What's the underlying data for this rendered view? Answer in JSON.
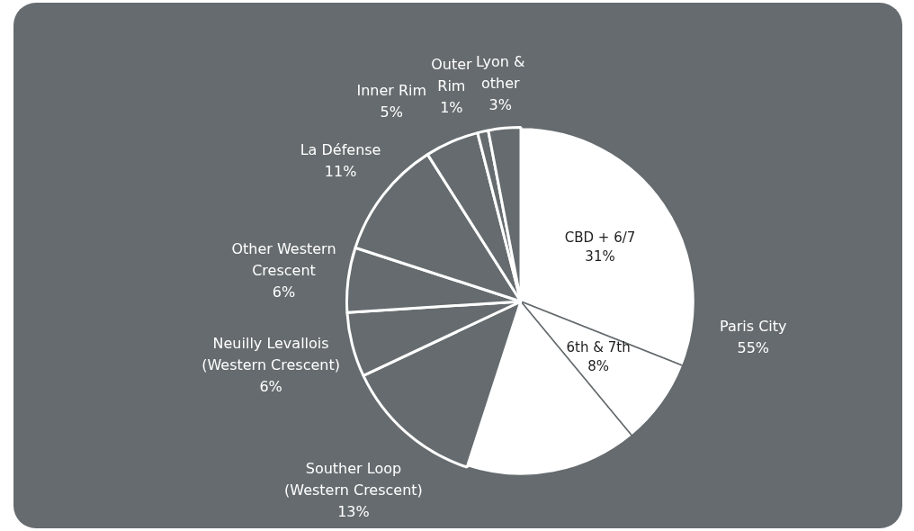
{
  "chart_data": {
    "type": "pie",
    "categories": [
      "CBD + 6/7",
      "6th & 7th",
      null,
      "Souther Loop (Western Crescent)",
      "Neuilly Levallois (Western Crescent)",
      "Other Western Crescent",
      "La Défense",
      "Inner Rim",
      "Outer Rim",
      "Lyon & other"
    ],
    "values": [
      31,
      8,
      16,
      13,
      6,
      6,
      11,
      5,
      1,
      3
    ],
    "value_labels": [
      "31%",
      "8%",
      null,
      "13%",
      "6%",
      "6%",
      "11%",
      "5%",
      "1%",
      "3%"
    ],
    "colors": [
      "#ffffff",
      "#ffffff",
      "#ffffff",
      "#656b6e",
      "#656b6e",
      "#656b6e",
      "#656b6e",
      "#656b6e",
      "#656b6e",
      "#656b6e"
    ],
    "annotations": [
      "Paris City 55%"
    ],
    "legend": false
  }
}
